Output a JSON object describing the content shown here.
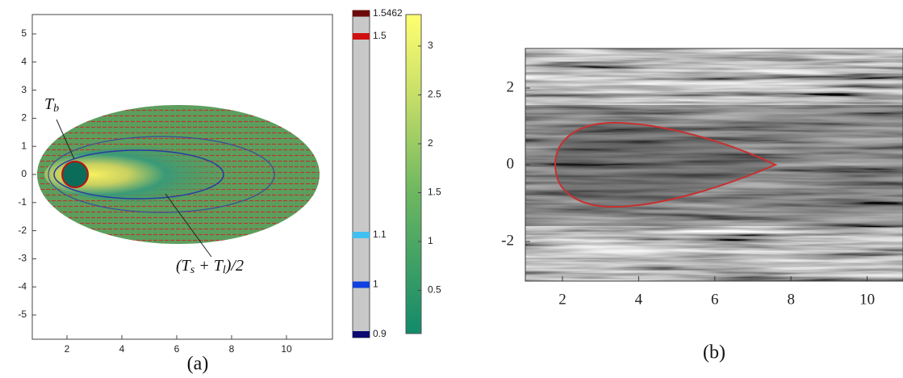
{
  "panel_a": {
    "xticks": [
      2,
      4,
      6,
      8,
      10
    ],
    "yticks": [
      5,
      4,
      3,
      2,
      1,
      0,
      -1,
      -2,
      -3,
      -4,
      -5
    ],
    "annotation_tb": [
      {
        "text": "T"
      },
      {
        "text": "b",
        "sub": true
      }
    ],
    "annotation_mean": [
      {
        "text": "(T"
      },
      {
        "text": "s",
        "sub": true
      },
      {
        "text": " + T"
      },
      {
        "text": "l",
        "sub": true
      },
      {
        "text": ")/2"
      }
    ],
    "caption": "(a)"
  },
  "colorbar_levels": {
    "ticks": [
      1.5462,
      1.5,
      1.1,
      1,
      0.9
    ],
    "colors": [
      "#6a0a0a",
      "#d01010",
      "#40c0f0",
      "#1040e0",
      "#0a0a70"
    ]
  },
  "colorbar_magnitude": {
    "ticks": [
      3,
      2.5,
      2,
      1.5,
      1,
      0.5
    ]
  },
  "panel_b": {
    "xticks": [
      2,
      4,
      6,
      8,
      10
    ],
    "yticks": [
      2,
      0,
      -2
    ],
    "caption": "(b)"
  }
}
